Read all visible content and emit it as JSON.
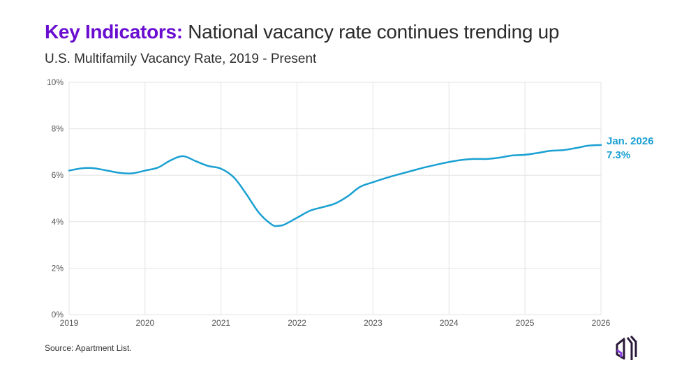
{
  "header": {
    "title_highlight": "Key Indicators:",
    "title_rest": "National vacancy rate continues trending up",
    "subtitle": "U.S. Multifamily Vacancy Rate, 2019 - Present"
  },
  "source": "Source: Apartment List.",
  "colors": {
    "line": "#1aa0d2",
    "accent": "#6a0dd1",
    "grid": "#e3e3e3"
  },
  "logo_icon": "apartment-list-house-logo",
  "chart_data": {
    "type": "line",
    "title": "U.S. Multifamily Vacancy Rate, 2019 - Present",
    "xlabel": "",
    "ylabel": "",
    "xlim": [
      2019,
      2026
    ],
    "ylim": [
      0,
      10
    ],
    "grid": true,
    "x_ticks": [
      "2019",
      "2020",
      "2021",
      "2022",
      "2023",
      "2024",
      "2025",
      "2026"
    ],
    "y_ticks": [
      "0%",
      "2%",
      "4%",
      "6%",
      "8%",
      "10%"
    ],
    "series": [
      {
        "x": [
          2019.0,
          2019.17,
          2019.33,
          2019.5,
          2019.67,
          2019.83,
          2020.0,
          2020.17,
          2020.33,
          2020.5,
          2020.67,
          2020.83,
          2021.0,
          2021.17,
          2021.33,
          2021.5,
          2021.67,
          2021.75,
          2021.83,
          2022.0,
          2022.17,
          2022.33,
          2022.5,
          2022.67,
          2022.83,
          2023.0,
          2023.17,
          2023.33,
          2023.5,
          2023.67,
          2023.83,
          2024.0,
          2024.17,
          2024.33,
          2024.5,
          2024.67,
          2024.83,
          2025.0,
          2025.17,
          2025.33,
          2025.5,
          2025.67,
          2025.83,
          2026.0
        ],
        "y": [
          6.2,
          6.3,
          6.3,
          6.2,
          6.1,
          6.08,
          6.2,
          6.33,
          6.63,
          6.82,
          6.6,
          6.4,
          6.28,
          5.9,
          5.2,
          4.38,
          3.87,
          3.82,
          3.87,
          4.17,
          4.47,
          4.62,
          4.78,
          5.1,
          5.5,
          5.7,
          5.88,
          6.03,
          6.18,
          6.33,
          6.45,
          6.57,
          6.66,
          6.7,
          6.7,
          6.76,
          6.85,
          6.88,
          6.96,
          7.05,
          7.08,
          7.17,
          7.27,
          7.3
        ]
      }
    ],
    "annotation": {
      "label": "Jan. 2026",
      "value": "7.3%"
    }
  }
}
